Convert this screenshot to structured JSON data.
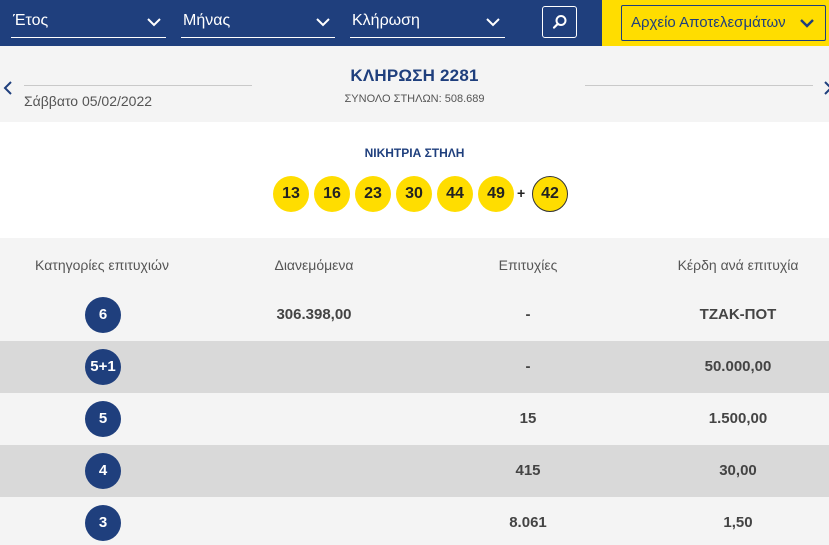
{
  "filters": {
    "year_label": "Έτος",
    "month_label": "Μήνας",
    "draw_label": "Κλήρωση",
    "search_icon": "search-icon",
    "archive_label": "Αρχείο Αποτελεσμάτων"
  },
  "draw": {
    "date": "Σάββατο 05/02/2022",
    "title": "ΚΛΗΡΩΣΗ 2281",
    "total_columns": "ΣΥΝΟΛΟ ΣΤΗΛΩΝ: 508.689"
  },
  "winning": {
    "title": "ΝΙΚΗΤΡΙΑ ΣΤΗΛΗ",
    "numbers": [
      "13",
      "16",
      "23",
      "30",
      "44",
      "49"
    ],
    "plus": "+",
    "bonus": "42"
  },
  "table": {
    "headers": {
      "category": "Κατηγορίες επιτυχιών",
      "distributed": "Διανεμόμενα",
      "wins": "Επιτυχίες",
      "prize": "Κέρδη ανά επιτυχία"
    },
    "rows": [
      {
        "category": "6",
        "distributed": "306.398,00",
        "wins": "-",
        "prize": "ΤΖΑΚ-ΠΟΤ"
      },
      {
        "category": "5+1",
        "distributed": "",
        "wins": "-",
        "prize": "50.000,00"
      },
      {
        "category": "5",
        "distributed": "",
        "wins": "15",
        "prize": "1.500,00"
      },
      {
        "category": "4",
        "distributed": "",
        "wins": "415",
        "prize": "30,00"
      },
      {
        "category": "3",
        "distributed": "",
        "wins": "8.061",
        "prize": "1,50"
      }
    ]
  },
  "colors": {
    "brand_blue": "#1f3f7d",
    "brand_yellow": "#ffdd00"
  }
}
